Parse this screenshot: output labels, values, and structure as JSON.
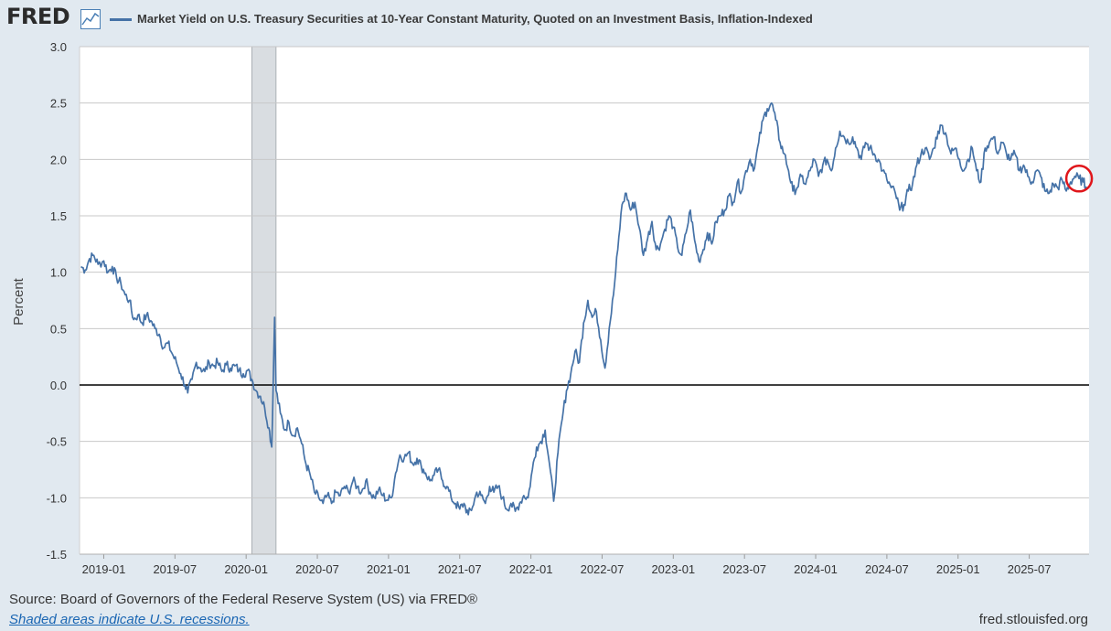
{
  "header": {
    "logo_text": "FRED",
    "logo_icon": "line-chart-icon",
    "series_title": "Market Yield on U.S. Treasury Securities at 10-Year Constant Maturity, Quoted on an Investment Basis, Inflation-Indexed"
  },
  "footer": {
    "source": "Source: Board of Governors of the Federal Reserve System (US) via FRED®",
    "recession_note": "Shaded areas indicate U.S. recessions.",
    "site": "fred.stlouisfed.org"
  },
  "colors": {
    "page_bg": "#e1e9f0",
    "plot_bg": "#ffffff",
    "series": "#4572a7",
    "grid": "#c8c8c8",
    "zero_line": "#000000",
    "recession": "#d9dde1",
    "highlight_circle": "#e0161b"
  },
  "chart_data": {
    "type": "line",
    "title": "Market Yield on U.S. Treasury Securities at 10-Year Constant Maturity, Quoted on an Investment Basis, Inflation-Indexed",
    "xlabel": "",
    "ylabel": "Percent",
    "ylim": [
      -1.5,
      3.0
    ],
    "yticks": [
      "3.0",
      "2.5",
      "2.0",
      "1.5",
      "1.0",
      "0.5",
      "0.0",
      "-0.5",
      "-1.0",
      "-1.5"
    ],
    "ytick_values": [
      3.0,
      2.5,
      2.0,
      1.5,
      1.0,
      0.5,
      0.0,
      -0.5,
      -1.0,
      -1.5
    ],
    "xlim": [
      2018.83,
      2025.92
    ],
    "xticks": [
      "2019-01",
      "2019-07",
      "2020-01",
      "2020-07",
      "2021-01",
      "2021-07",
      "2022-01",
      "2022-07",
      "2023-01",
      "2023-07",
      "2024-01",
      "2024-07",
      "2025-01",
      "2025-07"
    ],
    "xtick_values": [
      2019.0,
      2019.5,
      2020.0,
      2020.5,
      2021.0,
      2021.5,
      2022.0,
      2022.5,
      2023.0,
      2023.5,
      2024.0,
      2024.5,
      2025.0,
      2025.5
    ],
    "recessions": [
      [
        2020.04,
        2020.21
      ]
    ],
    "zero_line": 0.0,
    "highlight_point": [
      2025.85,
      1.83
    ],
    "series": [
      {
        "name": "Market Yield on U.S. Treasury Securities at 10-Year Constant Maturity, Quoted on an Investment Basis, Inflation-Indexed",
        "points": [
          [
            2018.84,
            1.05
          ],
          [
            2018.87,
            1.02
          ],
          [
            2018.9,
            1.12
          ],
          [
            2018.93,
            1.15
          ],
          [
            2018.96,
            1.07
          ],
          [
            2019.0,
            1.1
          ],
          [
            2019.03,
            1.0
          ],
          [
            2019.06,
            1.05
          ],
          [
            2019.09,
            0.95
          ],
          [
            2019.12,
            0.9
          ],
          [
            2019.15,
            0.8
          ],
          [
            2019.18,
            0.75
          ],
          [
            2019.21,
            0.58
          ],
          [
            2019.24,
            0.62
          ],
          [
            2019.27,
            0.55
          ],
          [
            2019.3,
            0.62
          ],
          [
            2019.33,
            0.57
          ],
          [
            2019.36,
            0.5
          ],
          [
            2019.39,
            0.45
          ],
          [
            2019.42,
            0.33
          ],
          [
            2019.45,
            0.37
          ],
          [
            2019.48,
            0.28
          ],
          [
            2019.51,
            0.2
          ],
          [
            2019.54,
            0.1
          ],
          [
            2019.57,
            0.0
          ],
          [
            2019.59,
            -0.07
          ],
          [
            2019.62,
            0.05
          ],
          [
            2019.65,
            0.2
          ],
          [
            2019.68,
            0.15
          ],
          [
            2019.71,
            0.12
          ],
          [
            2019.74,
            0.2
          ],
          [
            2019.77,
            0.17
          ],
          [
            2019.8,
            0.2
          ],
          [
            2019.83,
            0.12
          ],
          [
            2019.86,
            0.18
          ],
          [
            2019.89,
            0.15
          ],
          [
            2019.92,
            0.17
          ],
          [
            2019.95,
            0.13
          ],
          [
            2019.98,
            0.1
          ],
          [
            2020.01,
            0.13
          ],
          [
            2020.04,
            0.05
          ],
          [
            2020.07,
            -0.05
          ],
          [
            2020.1,
            -0.1
          ],
          [
            2020.13,
            -0.2
          ],
          [
            2020.16,
            -0.38
          ],
          [
            2020.18,
            -0.55
          ],
          [
            2020.2,
            0.6
          ],
          [
            2020.21,
            -0.05
          ],
          [
            2020.24,
            -0.25
          ],
          [
            2020.27,
            -0.4
          ],
          [
            2020.3,
            -0.33
          ],
          [
            2020.33,
            -0.45
          ],
          [
            2020.36,
            -0.38
          ],
          [
            2020.39,
            -0.52
          ],
          [
            2020.42,
            -0.7
          ],
          [
            2020.45,
            -0.8
          ],
          [
            2020.48,
            -0.95
          ],
          [
            2020.51,
            -1.0
          ],
          [
            2020.54,
            -1.05
          ],
          [
            2020.57,
            -0.98
          ],
          [
            2020.6,
            -1.05
          ],
          [
            2020.63,
            -0.95
          ],
          [
            2020.66,
            -0.98
          ],
          [
            2020.69,
            -0.9
          ],
          [
            2020.72,
            -0.95
          ],
          [
            2020.75,
            -0.85
          ],
          [
            2020.78,
            -0.9
          ],
          [
            2020.81,
            -0.95
          ],
          [
            2020.84,
            -0.85
          ],
          [
            2020.87,
            -0.95
          ],
          [
            2020.9,
            -1.0
          ],
          [
            2020.93,
            -0.93
          ],
          [
            2020.96,
            -0.98
          ],
          [
            2020.99,
            -1.02
          ],
          [
            2021.02,
            -1.0
          ],
          [
            2021.05,
            -0.78
          ],
          [
            2021.08,
            -0.62
          ],
          [
            2021.11,
            -0.65
          ],
          [
            2021.14,
            -0.6
          ],
          [
            2021.17,
            -0.7
          ],
          [
            2021.2,
            -0.65
          ],
          [
            2021.23,
            -0.72
          ],
          [
            2021.26,
            -0.78
          ],
          [
            2021.29,
            -0.85
          ],
          [
            2021.32,
            -0.8
          ],
          [
            2021.35,
            -0.75
          ],
          [
            2021.38,
            -0.85
          ],
          [
            2021.41,
            -0.9
          ],
          [
            2021.44,
            -1.0
          ],
          [
            2021.47,
            -1.05
          ],
          [
            2021.5,
            -1.1
          ],
          [
            2021.53,
            -1.05
          ],
          [
            2021.56,
            -1.15
          ],
          [
            2021.59,
            -1.08
          ],
          [
            2021.62,
            -0.95
          ],
          [
            2021.65,
            -0.98
          ],
          [
            2021.68,
            -1.05
          ],
          [
            2021.71,
            -0.9
          ],
          [
            2021.74,
            -0.95
          ],
          [
            2021.77,
            -0.9
          ],
          [
            2021.8,
            -1.0
          ],
          [
            2021.83,
            -1.1
          ],
          [
            2021.86,
            -1.05
          ],
          [
            2021.89,
            -1.12
          ],
          [
            2021.92,
            -1.05
          ],
          [
            2021.95,
            -0.98
          ],
          [
            2021.98,
            -1.0
          ],
          [
            2022.01,
            -0.75
          ],
          [
            2022.04,
            -0.55
          ],
          [
            2022.07,
            -0.5
          ],
          [
            2022.1,
            -0.4
          ],
          [
            2022.13,
            -0.7
          ],
          [
            2022.16,
            -1.03
          ],
          [
            2022.19,
            -0.6
          ],
          [
            2022.22,
            -0.3
          ],
          [
            2022.25,
            -0.05
          ],
          [
            2022.28,
            0.1
          ],
          [
            2022.31,
            0.3
          ],
          [
            2022.34,
            0.2
          ],
          [
            2022.37,
            0.55
          ],
          [
            2022.4,
            0.75
          ],
          [
            2022.43,
            0.6
          ],
          [
            2022.46,
            0.65
          ],
          [
            2022.49,
            0.4
          ],
          [
            2022.52,
            0.15
          ],
          [
            2022.55,
            0.5
          ],
          [
            2022.58,
            0.8
          ],
          [
            2022.61,
            1.2
          ],
          [
            2022.64,
            1.6
          ],
          [
            2022.67,
            1.7
          ],
          [
            2022.7,
            1.55
          ],
          [
            2022.73,
            1.62
          ],
          [
            2022.76,
            1.4
          ],
          [
            2022.79,
            1.15
          ],
          [
            2022.82,
            1.3
          ],
          [
            2022.85,
            1.45
          ],
          [
            2022.88,
            1.2
          ],
          [
            2022.91,
            1.25
          ],
          [
            2022.94,
            1.38
          ],
          [
            2022.97,
            1.5
          ],
          [
            2023.0,
            1.4
          ],
          [
            2023.03,
            1.22
          ],
          [
            2023.06,
            1.15
          ],
          [
            2023.09,
            1.35
          ],
          [
            2023.12,
            1.55
          ],
          [
            2023.15,
            1.28
          ],
          [
            2023.18,
            1.1
          ],
          [
            2023.21,
            1.2
          ],
          [
            2023.24,
            1.35
          ],
          [
            2023.27,
            1.25
          ],
          [
            2023.3,
            1.45
          ],
          [
            2023.33,
            1.5
          ],
          [
            2023.36,
            1.55
          ],
          [
            2023.39,
            1.68
          ],
          [
            2023.42,
            1.62
          ],
          [
            2023.45,
            1.8
          ],
          [
            2023.48,
            1.72
          ],
          [
            2023.51,
            1.9
          ],
          [
            2023.54,
            2.0
          ],
          [
            2023.57,
            1.92
          ],
          [
            2023.6,
            2.15
          ],
          [
            2023.63,
            2.35
          ],
          [
            2023.66,
            2.45
          ],
          [
            2023.69,
            2.5
          ],
          [
            2023.72,
            2.35
          ],
          [
            2023.75,
            2.15
          ],
          [
            2023.78,
            2.05
          ],
          [
            2023.81,
            1.9
          ],
          [
            2023.84,
            1.72
          ],
          [
            2023.87,
            1.75
          ],
          [
            2023.9,
            1.85
          ],
          [
            2023.93,
            1.78
          ],
          [
            2023.96,
            1.9
          ],
          [
            2023.99,
            2.0
          ],
          [
            2024.02,
            1.85
          ],
          [
            2024.05,
            1.95
          ],
          [
            2024.08,
            2.0
          ],
          [
            2024.11,
            1.9
          ],
          [
            2024.14,
            2.1
          ],
          [
            2024.17,
            2.25
          ],
          [
            2024.2,
            2.2
          ],
          [
            2024.23,
            2.15
          ],
          [
            2024.26,
            2.2
          ],
          [
            2024.29,
            2.1
          ],
          [
            2024.32,
            2.0
          ],
          [
            2024.35,
            2.15
          ],
          [
            2024.38,
            2.1
          ],
          [
            2024.41,
            2.05
          ],
          [
            2024.44,
            2.0
          ],
          [
            2024.47,
            1.9
          ],
          [
            2024.5,
            1.82
          ],
          [
            2024.53,
            1.75
          ],
          [
            2024.56,
            1.7
          ],
          [
            2024.59,
            1.55
          ],
          [
            2024.62,
            1.6
          ],
          [
            2024.65,
            1.72
          ],
          [
            2024.68,
            1.78
          ],
          [
            2024.71,
            1.95
          ],
          [
            2024.74,
            2.05
          ],
          [
            2024.77,
            2.1
          ],
          [
            2024.8,
            2.0
          ],
          [
            2024.83,
            2.1
          ],
          [
            2024.86,
            2.25
          ],
          [
            2024.89,
            2.3
          ],
          [
            2024.92,
            2.2
          ],
          [
            2024.95,
            2.05
          ],
          [
            2024.98,
            2.1
          ],
          [
            2025.01,
            2.0
          ],
          [
            2025.04,
            1.9
          ],
          [
            2025.07,
            2.0
          ],
          [
            2025.1,
            2.1
          ],
          [
            2025.13,
            1.9
          ],
          [
            2025.16,
            1.8
          ],
          [
            2025.19,
            2.1
          ],
          [
            2025.22,
            2.15
          ],
          [
            2025.25,
            2.2
          ],
          [
            2025.28,
            2.05
          ],
          [
            2025.31,
            2.15
          ],
          [
            2025.34,
            2.05
          ],
          [
            2025.37,
            2.0
          ],
          [
            2025.4,
            2.05
          ],
          [
            2025.43,
            1.9
          ],
          [
            2025.46,
            1.95
          ],
          [
            2025.49,
            1.85
          ],
          [
            2025.52,
            1.8
          ],
          [
            2025.55,
            1.9
          ],
          [
            2025.58,
            1.85
          ],
          [
            2025.61,
            1.72
          ],
          [
            2025.64,
            1.7
          ],
          [
            2025.67,
            1.78
          ],
          [
            2025.7,
            1.75
          ],
          [
            2025.73,
            1.82
          ],
          [
            2025.76,
            1.72
          ],
          [
            2025.79,
            1.8
          ],
          [
            2025.82,
            1.85
          ],
          [
            2025.85,
            1.83
          ],
          [
            2025.88,
            1.8
          ],
          [
            2025.9,
            1.76
          ]
        ]
      }
    ]
  }
}
